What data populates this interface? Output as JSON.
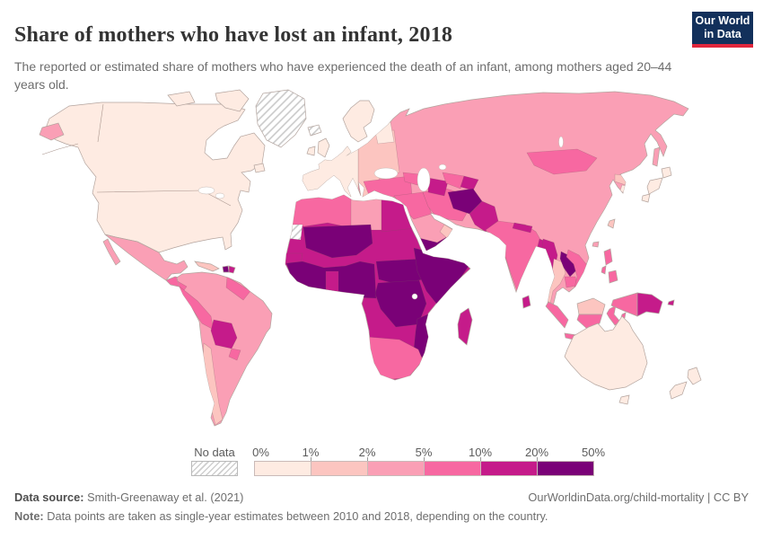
{
  "header": {
    "title": "Share of mothers who have lost an infant, 2018",
    "subtitle": "The reported or estimated share of mothers who have experienced the death of an infant, among mothers aged 20–44 years old.",
    "logo": {
      "line1": "Our World",
      "line2": "in Data",
      "bg_color": "#12305b",
      "accent_color": "#e0263c"
    }
  },
  "legend": {
    "no_data_label": "No data",
    "ticks": [
      "0%",
      "1%",
      "2%",
      "5%",
      "10%",
      "20%",
      "50%"
    ],
    "colors": [
      "#feebe2",
      "#fcc5c0",
      "#fa9fb5",
      "#f768a1",
      "#c51b8a",
      "#7a0177"
    ]
  },
  "footer": {
    "data_source_label": "Data source:",
    "data_source_value": "Smith-Greenaway et al. (2021)",
    "link_text": "OurWorldinData.org/child-mortality | CC BY",
    "note_label": "Note:",
    "note_value": "Data points are taken as single-year estimates between 2010 and 2018, depending on the country."
  },
  "chart_data": {
    "type": "choropleth",
    "title": "Share of mothers who have lost an infant, 2018",
    "unit": "%",
    "legend_position": "bottom",
    "bins": [
      {
        "range": "0–1%",
        "color": "#feebe2"
      },
      {
        "range": "1–2%",
        "color": "#fcc5c0"
      },
      {
        "range": "2–5%",
        "color": "#fa9fb5"
      },
      {
        "range": "5–10%",
        "color": "#f768a1"
      },
      {
        "range": "10–20%",
        "color": "#c51b8a"
      },
      {
        "range": "20–50%",
        "color": "#7a0177"
      }
    ],
    "no_data_regions": [
      "Greenland",
      "Iceland",
      "Western Sahara"
    ],
    "regions_by_bin": {
      "0–1%": [
        "United States",
        "Canada",
        "Western Europe",
        "Scandinavia",
        "Japan",
        "South Korea",
        "Australia",
        "New Zealand"
      ],
      "1–2%": [
        "Eastern Europe",
        "Chile",
        "Cuba",
        "Thailand",
        "Malaysia",
        "Oman",
        "Taiwan",
        "North Korea"
      ],
      "2–5%": [
        "Mexico",
        "Brazil",
        "Colombia",
        "Venezuela",
        "Argentina",
        "Russia",
        "Kazakhstan",
        "China",
        "Saudi Arabia",
        "Libya"
      ],
      "5–10%": [
        "Peru",
        "Ecuador",
        "Morocco",
        "Algeria",
        "Turkey",
        "Iraq",
        "Iran",
        "Uzbekistan",
        "India",
        "Vietnam",
        "Cambodia",
        "Indonesia",
        "Philippines",
        "Mongolia",
        "South Africa",
        "Namibia",
        "Botswana",
        "Central America"
      ],
      "10–20%": [
        "Bolivia",
        "Mauritania",
        "Senegal",
        "Ghana",
        "Egypt",
        "Sudan",
        "Chad",
        "Cameroon",
        "Congo",
        "Angola",
        "Zambia",
        "Zimbabwe",
        "Kenya",
        "Tanzania",
        "Uganda",
        "Madagascar",
        "Turkmenistan",
        "Pakistan",
        "Nepal",
        "Bangladesh",
        "Myanmar",
        "Papua New Guinea",
        "Sri Lanka",
        "Dominican Republic"
      ],
      "20–50%": [
        "Haiti",
        "Mali",
        "Niger",
        "Guinea",
        "Sierra Leone",
        "Côte d'Ivoire",
        "Nigeria",
        "Central African Republic",
        "South Sudan",
        "DR Congo",
        "Ethiopia",
        "Somalia",
        "Mozambique",
        "Afghanistan",
        "Yemen",
        "Laos"
      ]
    }
  },
  "map": {
    "ocean_color": "#ffffff",
    "coast_color": "#b3a49e",
    "region_colors": {
      "greenland": "nodata",
      "iceland": "nodata",
      "western_sahara": "nodata",
      "north_america": "#feebe2",
      "baffin": "#feebe2",
      "victoria_island": "#feebe2",
      "newfoundland": "#feebe2",
      "mexico": "#fa9fb5",
      "baja": "#fa9fb5",
      "central_america": "#f768a1",
      "cuba": "#fcc5c0",
      "haiti": "#7a0177",
      "dominican_republic": "#c51b8a",
      "chukotka": "#fa9fb5",
      "south_america": "#fa9fb5",
      "guyanas": "#f768a1",
      "ecuador": "#f768a1",
      "peru": "#f768a1",
      "bolivia": "#c51b8a",
      "paraguay": "#f768a1",
      "chile": "#fcc5c0",
      "africa_base": "#c51b8a",
      "africa_northwest": "#f768a1",
      "libya": "#fa9fb5",
      "egypt": "#c51b8a",
      "mali_niger": "#7a0177",
      "senegal": "#c51b8a",
      "west_africa_coast": "#7a0177",
      "ghana": "#c51b8a",
      "car_south_sudan": "#7a0177",
      "horn_of_africa": "#7a0177",
      "drc": "#7a0177",
      "mozambique": "#7a0177",
      "southern_africa": "#f768a1",
      "madagascar": "#c51b8a",
      "eurasia_base": "#fa9fb5",
      "western_europe": "#feebe2",
      "eastern_europe": "#fcc5c0",
      "finland": "#feebe2",
      "scandinavia": "#feebe2",
      "uk": "#feebe2",
      "ireland": "#feebe2",
      "turkey": "#f768a1",
      "caucasus": "#f768a1",
      "levant_iraq": "#f768a1",
      "iran": "#f768a1",
      "yemen": "#7a0177",
      "oman": "#fcc5c0",
      "turkmenistan": "#c51b8a",
      "uzbekistan": "#f768a1",
      "kyrgyzstan_tajikistan": "#c51b8a",
      "afghanistan": "#7a0177",
      "pakistan": "#c51b8a",
      "india": "#f768a1",
      "nepal": "#c51b8a",
      "bangladesh": "#c51b8a",
      "sri_lanka": "#c51b8a",
      "myanmar": "#c51b8a",
      "thailand": "#fcc5c0",
      "laos": "#7a0177",
      "cambodia": "#f768a1",
      "vietnam": "#f768a1",
      "mongolia": "#f768a1",
      "north_korea": "#fcc5c0",
      "south_korea": "#feebe2",
      "japan": "#feebe2",
      "sakhalin": "#fa9fb5",
      "taiwan": "#fcc5c0",
      "hainan": "#fa9fb5",
      "philippines": "#f768a1",
      "malaysia_borneo": "#fcc5c0",
      "indonesia_borneo": "#f768a1",
      "sumatra": "#f768a1",
      "java": "#f768a1",
      "sulawesi": "#f768a1",
      "moluccas": "#f768a1",
      "timor": "#fcc5c0",
      "west_papua": "#f768a1",
      "papua_new_guinea": "#c51b8a",
      "png_islands": "#c51b8a",
      "australia": "#feebe2",
      "tasmania": "#feebe2",
      "new_zealand": "#feebe2"
    }
  }
}
